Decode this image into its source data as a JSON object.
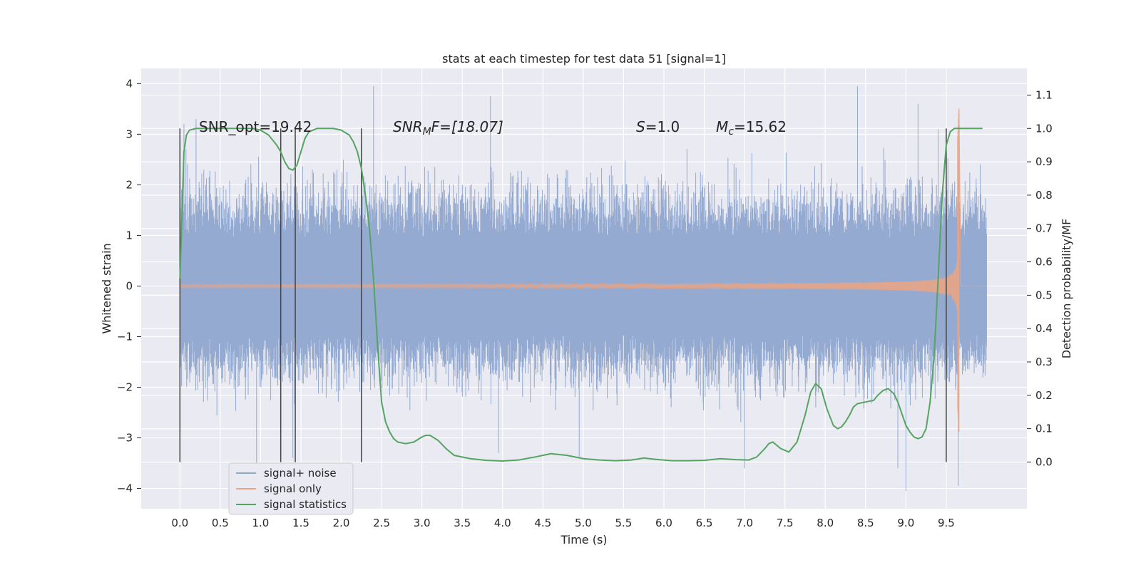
{
  "chart_data": {
    "type": "line",
    "title": "stats at each timestep for test data 51 [signal=1]",
    "xlabel": "Time (s)",
    "ylabel": "Whitened strain",
    "y2label": "Detection probability/MF",
    "xlim": [
      -0.48,
      10.5
    ],
    "ylim": [
      -4.4,
      4.3
    ],
    "y2lim": [
      -0.14,
      1.18
    ],
    "xticks": [
      "0.0",
      "0.5",
      "1.0",
      "1.5",
      "2.0",
      "2.5",
      "3.0",
      "3.5",
      "4.0",
      "4.5",
      "5.0",
      "5.5",
      "6.0",
      "6.5",
      "7.0",
      "7.5",
      "8.0",
      "8.5",
      "9.0",
      "9.5"
    ],
    "yticks": [
      "4",
      "3",
      "2",
      "1",
      "0",
      "−1",
      "−2",
      "−3",
      "−4"
    ],
    "y2ticks": [
      "1.1",
      "1.0",
      "0.9",
      "0.8",
      "0.7",
      "0.6",
      "0.5",
      "0.4",
      "0.3",
      "0.2",
      "0.1",
      "0.0"
    ],
    "grid": true,
    "legend_position": "lower-left",
    "annotations": {
      "snr_opt": "SNR_opt=19.42",
      "snr_mf_base": "SNR",
      "snr_mf_sub": "M",
      "snr_mf_tail": "F=[18.07]",
      "s_label": "S",
      "s_value": "=1.0",
      "mc_base": "M",
      "mc_sub": "c",
      "mc_value": "=15.62"
    },
    "series": [
      {
        "name": "signal+ noise",
        "color": "#8fa6cf",
        "description_type": "noise",
        "t_range": [
          0.0,
          10.0
        ],
        "typical_amplitude": 1.2,
        "spike_peaks": [
          {
            "t": 0.05,
            "v": 3.2
          },
          {
            "t": 0.2,
            "v": 3.3
          },
          {
            "t": 0.95,
            "v": -3.5
          },
          {
            "t": 1.4,
            "v": -3.4
          },
          {
            "t": 2.4,
            "v": 3.95
          },
          {
            "t": 3.85,
            "v": 3.75
          },
          {
            "t": 3.95,
            "v": -3.3
          },
          {
            "t": 4.95,
            "v": -3.4
          },
          {
            "t": 7.0,
            "v": -3.6
          },
          {
            "t": 8.4,
            "v": 3.95
          },
          {
            "t": 8.9,
            "v": -3.6
          },
          {
            "t": 9.0,
            "v": -4.05
          },
          {
            "t": 9.15,
            "v": 3.6
          },
          {
            "t": 9.4,
            "v": 3.1
          },
          {
            "t": 9.65,
            "v": -3.95
          }
        ]
      },
      {
        "name": "signal only",
        "color": "#e8a485",
        "description_type": "chirp",
        "t_range": [
          0.0,
          9.66
        ],
        "merger_time": 9.66,
        "peak_positive": 3.65,
        "peak_negative": -3.0
      },
      {
        "name": "signal statistics",
        "color": "#56a461",
        "axis": "right",
        "x": [
          0.0,
          0.02,
          0.05,
          0.08,
          0.12,
          0.2,
          0.3,
          0.5,
          0.7,
          0.9,
          1.0,
          1.1,
          1.2,
          1.25,
          1.3,
          1.35,
          1.4,
          1.45,
          1.5,
          1.55,
          1.6,
          1.7,
          1.8,
          1.9,
          2.0,
          2.1,
          2.15,
          2.2,
          2.25,
          2.3,
          2.35,
          2.4,
          2.45,
          2.5,
          2.55,
          2.6,
          2.65,
          2.7,
          2.8,
          2.9,
          3.0,
          3.05,
          3.1,
          3.2,
          3.3,
          3.4,
          3.6,
          3.8,
          4.0,
          4.2,
          4.4,
          4.6,
          4.8,
          5.0,
          5.2,
          5.4,
          5.6,
          5.75,
          5.9,
          6.1,
          6.3,
          6.5,
          6.7,
          6.9,
          7.05,
          7.15,
          7.25,
          7.3,
          7.35,
          7.45,
          7.55,
          7.65,
          7.75,
          7.82,
          7.88,
          7.95,
          8.02,
          8.1,
          8.15,
          8.2,
          8.25,
          8.3,
          8.35,
          8.4,
          8.5,
          8.6,
          8.65,
          8.72,
          8.78,
          8.85,
          8.9,
          9.0,
          9.05,
          9.1,
          9.15,
          9.2,
          9.25,
          9.3,
          9.35,
          9.4,
          9.45,
          9.5,
          9.55,
          9.6,
          9.65,
          9.7,
          9.8,
          9.95
        ],
        "y": [
          0.55,
          0.7,
          0.93,
          0.98,
          0.995,
          1.0,
          1.0,
          1.0,
          1.0,
          1.0,
          0.995,
          0.98,
          0.95,
          0.93,
          0.9,
          0.88,
          0.875,
          0.89,
          0.93,
          0.97,
          0.99,
          1.0,
          1.0,
          1.0,
          0.995,
          0.98,
          0.96,
          0.93,
          0.88,
          0.8,
          0.7,
          0.55,
          0.35,
          0.18,
          0.12,
          0.09,
          0.07,
          0.06,
          0.055,
          0.06,
          0.075,
          0.08,
          0.08,
          0.065,
          0.04,
          0.02,
          0.01,
          0.005,
          0.003,
          0.006,
          0.015,
          0.025,
          0.02,
          0.01,
          0.006,
          0.004,
          0.006,
          0.012,
          0.008,
          0.004,
          0.004,
          0.005,
          0.01,
          0.007,
          0.006,
          0.015,
          0.04,
          0.055,
          0.06,
          0.04,
          0.03,
          0.06,
          0.14,
          0.21,
          0.235,
          0.22,
          0.16,
          0.11,
          0.1,
          0.105,
          0.12,
          0.14,
          0.165,
          0.175,
          0.18,
          0.185,
          0.2,
          0.215,
          0.22,
          0.205,
          0.18,
          0.11,
          0.09,
          0.075,
          0.07,
          0.075,
          0.1,
          0.18,
          0.32,
          0.55,
          0.8,
          0.95,
          0.99,
          1.0,
          1.0,
          1.0,
          1.0,
          1.0
        ]
      }
    ],
    "vertical_markers": [
      0.0,
      1.25,
      1.43,
      2.25,
      9.5
    ]
  }
}
